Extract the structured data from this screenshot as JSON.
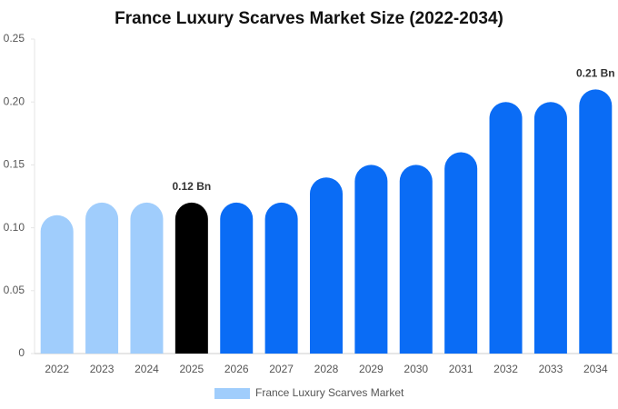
{
  "chart_data": {
    "type": "bar",
    "title": "France Luxury Scarves Market Size (2022-2034)",
    "categories": [
      "2022",
      "2023",
      "2024",
      "2025",
      "2026",
      "2027",
      "2028",
      "2029",
      "2030",
      "2031",
      "2032",
      "2033",
      "2034"
    ],
    "series": [
      {
        "name": "France Luxury Scarves Market",
        "color": "#a0cdfc",
        "values": [
          0.11,
          0.12,
          0.12,
          0.12,
          0.12,
          0.12,
          0.14,
          0.15,
          0.15,
          0.16,
          0.2,
          0.2,
          0.21
        ],
        "value_labels": [
          null,
          null,
          null,
          "0.12 Bn",
          null,
          null,
          null,
          null,
          null,
          null,
          null,
          null,
          "0.21 Bn"
        ],
        "colors": [
          "#a0cdfc",
          "#a0cdfc",
          "#a0cdfc",
          "#000000",
          "#0a6cf5",
          "#0a6cf5",
          "#0a6cf5",
          "#0a6cf5",
          "#0a6cf5",
          "#0a6cf5",
          "#0a6cf5",
          "#0a6cf5",
          "#0a6cf5"
        ]
      }
    ],
    "ylim": [
      0,
      0.25
    ],
    "yticks": [
      0,
      0.05,
      {
        "value": 0.1,
        "label": "0.10"
      },
      0.15,
      {
        "value": 0.2,
        "label": "0.20"
      },
      0.25
    ],
    "legend": "bottom"
  }
}
